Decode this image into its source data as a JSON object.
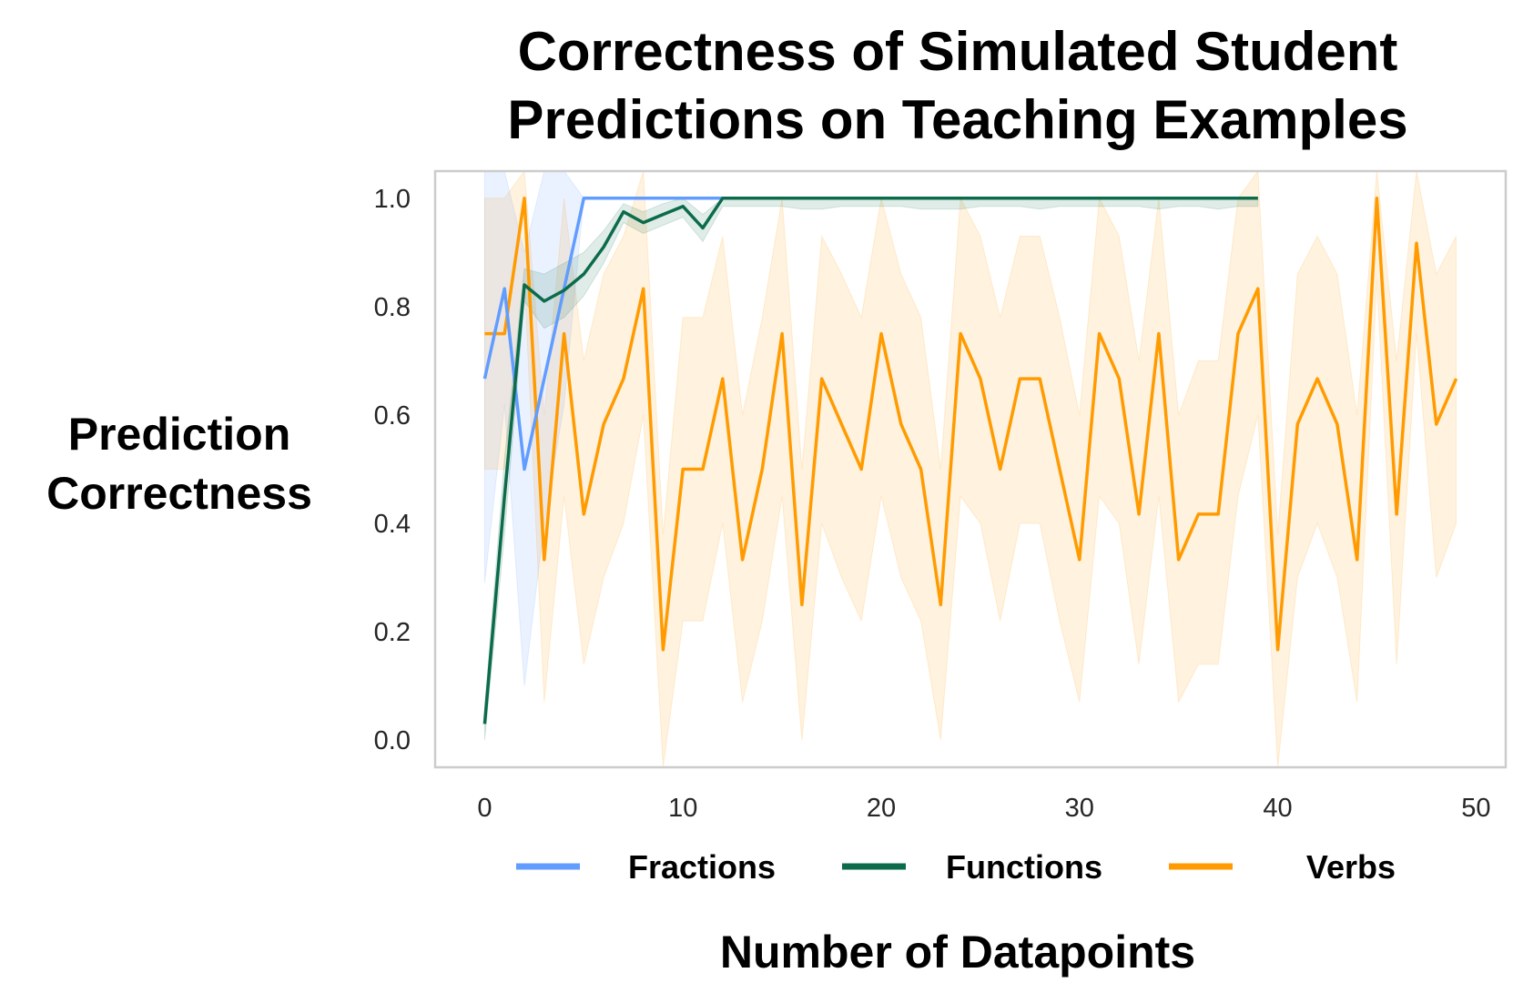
{
  "chart_data": {
    "type": "line",
    "title_lines": [
      "Correctness of Simulated Student",
      "Predictions on Teaching Examples"
    ],
    "xlabel": "Number of Datapoints",
    "ylabel_lines": [
      "Prediction",
      "Correctness"
    ],
    "xlim": [
      -2.5,
      51.5
    ],
    "ylim": [
      -0.05,
      1.05
    ],
    "x_ticks": [
      0,
      10,
      20,
      30,
      40,
      50
    ],
    "x_tick_labels": [
      "0",
      "10",
      "20",
      "30",
      "40",
      "50"
    ],
    "y_ticks": [
      0.0,
      0.2,
      0.4,
      0.6,
      0.8,
      1.0
    ],
    "y_tick_labels": [
      "0.0",
      "0.2",
      "0.4",
      "0.6",
      "0.8",
      "1.0"
    ],
    "grid": false,
    "legend_position": "bottom",
    "series": [
      {
        "name": "Fractions",
        "color": "#619cff",
        "x": [
          0,
          1,
          2,
          3,
          4,
          5,
          6,
          7,
          8,
          9,
          10,
          11,
          12,
          13,
          14,
          15,
          16,
          17,
          18,
          19,
          20,
          21,
          22,
          23,
          24,
          25,
          26,
          27,
          28,
          29,
          30,
          31,
          32,
          33,
          34,
          35,
          36,
          37,
          38,
          39
        ],
        "y": [
          0.667,
          0.833,
          0.5,
          0.667,
          0.833,
          1.0,
          1.0,
          1.0,
          1.0,
          1.0,
          1.0,
          1.0,
          1.0,
          1.0,
          1.0,
          1.0,
          1.0,
          1.0,
          1.0,
          1.0,
          1.0,
          1.0,
          1.0,
          1.0,
          1.0,
          1.0,
          1.0,
          1.0,
          1.0,
          1.0,
          1.0,
          1.0,
          1.0,
          1.0,
          1.0,
          1.0,
          1.0,
          1.0,
          1.0,
          1.0
        ],
        "lower": [
          0.29,
          0.62,
          0.1,
          0.4,
          0.62,
          1.0,
          1.0,
          1.0,
          1.0,
          1.0,
          1.0,
          1.0,
          1.0,
          1.0,
          1.0,
          1.0,
          1.0,
          1.0,
          1.0,
          1.0,
          1.0,
          1.0,
          1.0,
          1.0,
          1.0,
          1.0,
          1.0,
          1.0,
          1.0,
          1.0,
          1.0,
          1.0,
          1.0,
          1.0,
          1.0,
          1.0,
          1.0,
          1.0,
          1.0,
          1.0
        ],
        "upper": [
          1.05,
          1.05,
          0.9,
          1.05,
          1.05,
          1.0,
          1.0,
          1.0,
          1.0,
          1.0,
          1.0,
          1.0,
          1.0,
          1.0,
          1.0,
          1.0,
          1.0,
          1.0,
          1.0,
          1.0,
          1.0,
          1.0,
          1.0,
          1.0,
          1.0,
          1.0,
          1.0,
          1.0,
          1.0,
          1.0,
          1.0,
          1.0,
          1.0,
          1.0,
          1.0,
          1.0,
          1.0,
          1.0,
          1.0,
          1.0
        ]
      },
      {
        "name": "Functions",
        "color": "#0b6b4b",
        "x": [
          0,
          1,
          2,
          3,
          4,
          5,
          6,
          7,
          8,
          9,
          10,
          11,
          12,
          13,
          14,
          15,
          16,
          17,
          18,
          19,
          20,
          21,
          22,
          23,
          24,
          25,
          26,
          27,
          28,
          29,
          30,
          31,
          32,
          33,
          34,
          35,
          36,
          37,
          38,
          39
        ],
        "y": [
          0.03,
          0.45,
          0.84,
          0.81,
          0.83,
          0.86,
          0.91,
          0.975,
          0.955,
          0.97,
          0.985,
          0.945,
          1.0,
          1.0,
          1.0,
          1.0,
          1.0,
          1.0,
          1.0,
          1.0,
          1.0,
          1.0,
          1.0,
          1.0,
          1.0,
          1.0,
          1.0,
          1.0,
          1.0,
          1.0,
          1.0,
          1.0,
          1.0,
          1.0,
          1.0,
          1.0,
          1.0,
          1.0,
          1.0,
          1.0
        ],
        "lower": [
          0.0,
          0.38,
          0.81,
          0.76,
          0.78,
          0.82,
          0.88,
          0.955,
          0.935,
          0.95,
          0.965,
          0.92,
          0.985,
          0.985,
          0.985,
          0.985,
          0.98,
          0.98,
          0.985,
          0.985,
          0.985,
          0.985,
          0.98,
          0.98,
          0.98,
          0.985,
          0.985,
          0.985,
          0.98,
          0.985,
          0.985,
          0.985,
          0.985,
          0.985,
          0.98,
          0.985,
          0.985,
          0.98,
          0.985,
          0.985
        ],
        "upper": [
          0.06,
          0.52,
          0.87,
          0.86,
          0.88,
          0.9,
          0.94,
          0.99,
          0.975,
          0.99,
          1.0,
          0.97,
          1.0,
          1.0,
          1.0,
          1.0,
          1.0,
          1.0,
          1.0,
          1.0,
          1.0,
          1.0,
          1.0,
          1.0,
          1.0,
          1.0,
          1.0,
          1.0,
          1.0,
          1.0,
          1.0,
          1.0,
          1.0,
          1.0,
          1.0,
          1.0,
          1.0,
          1.0,
          1.0,
          1.0
        ]
      },
      {
        "name": "Verbs",
        "color": "#ff9b00",
        "x": [
          0,
          1,
          2,
          3,
          4,
          5,
          6,
          7,
          8,
          9,
          10,
          11,
          12,
          13,
          14,
          15,
          16,
          17,
          18,
          19,
          20,
          21,
          22,
          23,
          24,
          25,
          26,
          27,
          28,
          29,
          30,
          31,
          32,
          33,
          34,
          35,
          36,
          37,
          38,
          39,
          40,
          41,
          42,
          43,
          44,
          45,
          46,
          47,
          48,
          49
        ],
        "y": [
          0.75,
          0.75,
          1.0,
          0.333,
          0.75,
          0.417,
          0.583,
          0.667,
          0.833,
          0.167,
          0.5,
          0.5,
          0.667,
          0.333,
          0.5,
          0.75,
          0.25,
          0.667,
          0.583,
          0.5,
          0.75,
          0.583,
          0.5,
          0.25,
          0.75,
          0.667,
          0.5,
          0.667,
          0.667,
          0.5,
          0.333,
          0.75,
          0.667,
          0.417,
          0.75,
          0.333,
          0.417,
          0.417,
          0.75,
          0.833,
          0.167,
          0.583,
          0.667,
          0.583,
          0.333,
          1.0,
          0.417,
          0.917,
          0.583,
          0.667
        ],
        "lower": [
          0.5,
          0.5,
          0.85,
          0.07,
          0.45,
          0.14,
          0.3,
          0.4,
          0.6,
          -0.05,
          0.22,
          0.22,
          0.4,
          0.07,
          0.22,
          0.45,
          0.0,
          0.4,
          0.3,
          0.22,
          0.45,
          0.3,
          0.22,
          0.0,
          0.45,
          0.4,
          0.22,
          0.4,
          0.4,
          0.22,
          0.07,
          0.45,
          0.4,
          0.14,
          0.45,
          0.07,
          0.14,
          0.14,
          0.45,
          0.6,
          -0.05,
          0.3,
          0.4,
          0.3,
          0.07,
          0.85,
          0.14,
          0.75,
          0.3,
          0.4
        ],
        "upper": [
          1.0,
          1.0,
          1.05,
          0.6,
          1.0,
          0.7,
          0.86,
          0.93,
          1.05,
          0.38,
          0.78,
          0.78,
          0.93,
          0.6,
          0.78,
          1.0,
          0.5,
          0.93,
          0.86,
          0.78,
          1.0,
          0.86,
          0.78,
          0.5,
          1.0,
          0.93,
          0.78,
          0.93,
          0.93,
          0.78,
          0.6,
          1.0,
          0.93,
          0.7,
          1.0,
          0.6,
          0.7,
          0.7,
          1.0,
          1.05,
          0.38,
          0.86,
          0.93,
          0.86,
          0.6,
          1.05,
          0.7,
          1.05,
          0.86,
          0.93
        ]
      }
    ]
  }
}
